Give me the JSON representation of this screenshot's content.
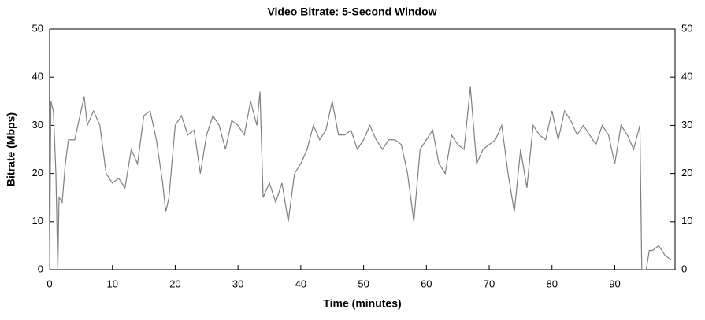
{
  "chart_data": {
    "type": "line",
    "title": "Video Bitrate: 5-Second Window",
    "xlabel": "Time (minutes)",
    "ylabel": "Bitrate (Mbps)",
    "x": [
      0,
      0.2,
      0.6,
      1,
      1.3,
      1.5,
      2,
      2.5,
      3,
      4,
      5,
      5.5,
      6,
      7,
      8,
      9,
      10,
      11,
      12,
      13,
      14,
      15,
      16,
      17,
      18,
      18.5,
      19,
      20,
      21,
      22,
      23,
      24,
      25,
      26,
      27,
      28,
      29,
      30,
      31,
      32,
      33,
      33.5,
      34,
      35,
      36,
      37,
      38,
      39,
      40,
      41,
      42,
      43,
      44,
      45,
      46,
      47,
      48,
      49,
      50,
      51,
      52,
      53,
      54,
      55,
      56,
      57,
      58,
      59,
      60,
      61,
      62,
      63,
      64,
      65,
      66,
      67,
      68,
      69,
      70,
      71,
      72,
      73,
      74,
      75,
      76,
      77,
      78,
      79,
      80,
      81,
      82,
      83,
      84,
      85,
      86,
      87,
      88,
      89,
      90,
      91,
      92,
      93,
      94,
      94.3,
      94.6,
      95,
      95.5,
      96,
      97,
      98,
      99
    ],
    "series": [
      {
        "name": "Bitrate",
        "color": "#808080",
        "values": [
          0,
          35,
          33,
          20,
          0,
          15,
          14,
          22,
          27,
          27,
          33,
          36,
          30,
          33,
          30,
          20,
          18,
          19,
          17,
          25,
          22,
          32,
          33,
          27,
          18,
          12,
          15,
          30,
          32,
          28,
          29,
          20,
          28,
          32,
          30,
          25,
          31,
          30,
          28,
          35,
          30,
          37,
          15,
          18,
          14,
          18,
          10,
          20,
          22,
          25,
          30,
          27,
          29,
          35,
          28,
          28,
          29,
          25,
          27,
          30,
          27,
          25,
          27,
          27,
          26,
          20,
          10,
          25,
          27,
          29,
          22,
          20,
          28,
          26,
          25,
          38,
          22,
          25,
          26,
          27,
          30,
          20,
          12,
          25,
          17,
          30,
          28,
          27,
          33,
          27,
          33,
          31,
          28,
          30,
          28,
          26,
          30,
          28,
          22,
          30,
          28,
          25,
          30,
          0,
          0,
          0,
          4,
          4,
          5,
          3,
          2
        ]
      }
    ],
    "xlim": [
      0,
      99.6
    ],
    "ylim": [
      0,
      50
    ],
    "y2lim": [
      0,
      50
    ],
    "xticks": [
      0,
      10,
      20,
      30,
      40,
      50,
      60,
      70,
      80,
      90
    ],
    "yticks": [
      0,
      10,
      20,
      30,
      40,
      50
    ],
    "y2ticks": [
      0,
      10,
      20,
      30,
      40,
      50
    ],
    "grid": false
  }
}
